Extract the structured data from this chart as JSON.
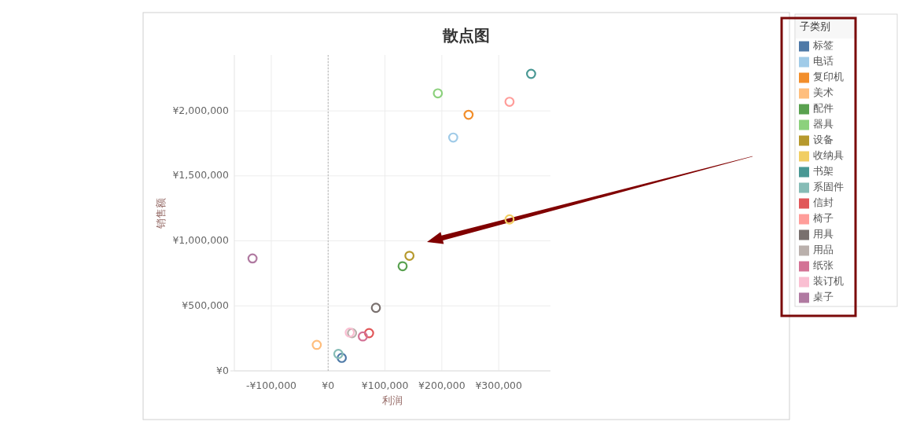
{
  "chart_data": {
    "type": "scatter",
    "title": "散点图",
    "xlabel": "利润",
    "ylabel": "销售额",
    "legend_title": "子类别",
    "legend": "right",
    "grid": true,
    "marker": "circle",
    "xlim": [
      -165000,
      391000
    ],
    "ylim": [
      0,
      2430000
    ],
    "xticks": [
      {
        "value": -100000,
        "label": "-¥100,000"
      },
      {
        "value": 0,
        "label": "¥0"
      },
      {
        "value": 100000,
        "label": "¥100,000"
      },
      {
        "value": 200000,
        "label": "¥200,000"
      },
      {
        "value": 300000,
        "label": "¥300,000"
      }
    ],
    "yticks": [
      {
        "value": 0,
        "label": "¥0"
      },
      {
        "value": 500000,
        "label": "¥500,000"
      },
      {
        "value": 1000000,
        "label": "¥1,000,000"
      },
      {
        "value": 1500000,
        "label": "¥1,500,000"
      },
      {
        "value": 2000000,
        "label": "¥2,000,000"
      }
    ],
    "ref_lines": [
      {
        "axis": "x",
        "value": 0,
        "line_style": "dotted",
        "color": "#b4b4b4"
      }
    ],
    "series": [
      {
        "name": "标签",
        "color": "#4e79a7",
        "x": [
          24000
        ],
        "values": [
          100000
        ]
      },
      {
        "name": "电话",
        "color": "#a0cbe8",
        "x": [
          220000
        ],
        "values": [
          1795000
        ]
      },
      {
        "name": "复印机",
        "color": "#f28e2b",
        "x": [
          247000
        ],
        "values": [
          1970000
        ]
      },
      {
        "name": "美术",
        "color": "#ffbe7d",
        "x": [
          -20000
        ],
        "values": [
          200000
        ]
      },
      {
        "name": "配件",
        "color": "#59a14f",
        "x": [
          131000
        ],
        "values": [
          805000
        ]
      },
      {
        "name": "器具",
        "color": "#8cd17d",
        "x": [
          193000
        ],
        "values": [
          2135000
        ]
      },
      {
        "name": "设备",
        "color": "#b6992d",
        "x": [
          143000
        ],
        "values": [
          885000
        ]
      },
      {
        "name": "收纳具",
        "color": "#f1ce63",
        "x": [
          319000
        ],
        "values": [
          1165000
        ]
      },
      {
        "name": "书架",
        "color": "#499894",
        "x": [
          357000
        ],
        "values": [
          2285000
        ]
      },
      {
        "name": "系固件",
        "color": "#86bcb6",
        "x": [
          18000
        ],
        "values": [
          130000
        ]
      },
      {
        "name": "信封",
        "color": "#e15759",
        "x": [
          72000
        ],
        "values": [
          290000
        ]
      },
      {
        "name": "椅子",
        "color": "#ff9d9a",
        "x": [
          319000
        ],
        "values": [
          2070000
        ]
      },
      {
        "name": "用具",
        "color": "#79706e",
        "x": [
          84000
        ],
        "values": [
          485000
        ]
      },
      {
        "name": "用品",
        "color": "#bab0ac",
        "x": [
          42000
        ],
        "values": [
          290000
        ]
      },
      {
        "name": "纸张",
        "color": "#d37295",
        "x": [
          61000
        ],
        "values": [
          265000
        ]
      },
      {
        "name": "装订机",
        "color": "#fabfd2",
        "x": [
          38000
        ],
        "values": [
          295000
        ]
      },
      {
        "name": "桌子",
        "color": "#b07aa1",
        "x": [
          -133000
        ],
        "values": [
          865000
        ]
      }
    ]
  }
}
